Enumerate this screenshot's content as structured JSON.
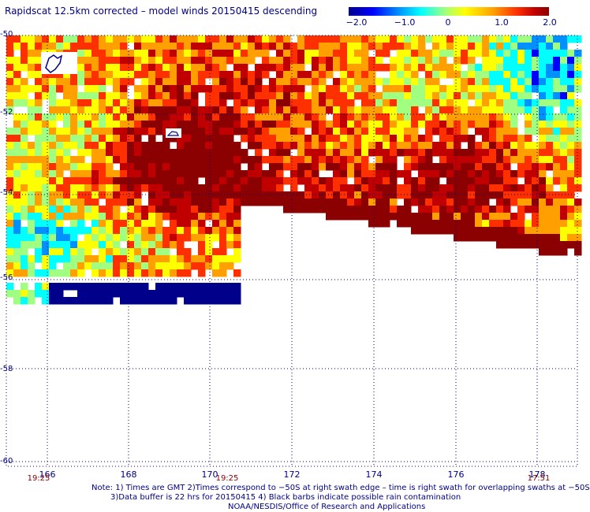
{
  "title": "Rapidscat 12.5km corrected – model winds 20150415 descending",
  "colorbar": {
    "labels": [
      "−2.0",
      "−1.0",
      "0",
      "1.0",
      "2.0"
    ],
    "range": [
      -2.0,
      2.0
    ],
    "colors": [
      "#00008b",
      "#0000ff",
      "#0090ff",
      "#00ffff",
      "#80ff80",
      "#ffff00",
      "#ffa500",
      "#ff4000",
      "#c00000",
      "#8b0000"
    ]
  },
  "axes": {
    "lat_labels": [
      "-50",
      "-52",
      "-54",
      "-56",
      "-58",
      "-60"
    ],
    "lon_labels": [
      "166",
      "168",
      "170",
      "172",
      "174",
      "176",
      "178"
    ]
  },
  "times": {
    "left": "19:25",
    "middle": "19:25",
    "right": "17:51"
  },
  "notes": {
    "line1": "Note: 1) Times are GMT 2)Times correspond to −50S at right swath edge – time is right swath for overlapping swaths at −50S",
    "line2": "3)Data buffer is 22 hrs for 20150415 4) Black barbs indicate possible rain contamination",
    "line3": "NOAA/NESDIS/Office of Research and Applications"
  }
}
